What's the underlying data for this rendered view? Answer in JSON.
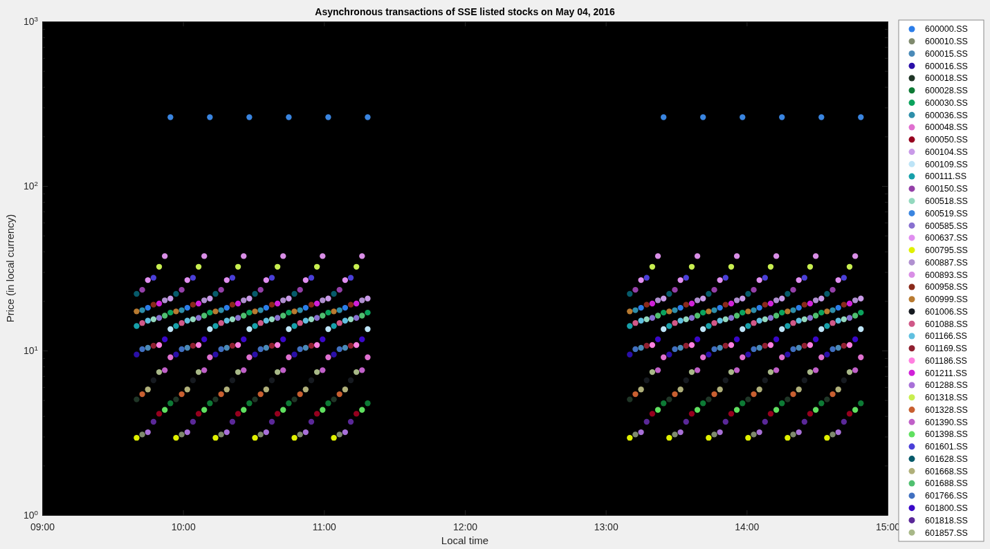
{
  "chart_data": {
    "type": "scatter",
    "title": "Asynchronous transactions of SSE listed stocks on May 04, 2016",
    "xlabel": "Local time",
    "ylabel": "Price (in local currency)",
    "log": "y",
    "grid": false,
    "legend": "right",
    "marker": "circle",
    "xlim": [
      9,
      15
    ],
    "xticks": [
      {
        "value": 9,
        "label": "09:00"
      },
      {
        "value": 10,
        "label": "10:00"
      },
      {
        "value": 11,
        "label": "11:00"
      },
      {
        "value": 12,
        "label": "12:00"
      },
      {
        "value": 13,
        "label": "13:00"
      },
      {
        "value": 14,
        "label": "14:00"
      },
      {
        "value": 15,
        "label": "15:00"
      }
    ],
    "ylim": [
      1,
      1000
    ],
    "yticks": [
      {
        "value": 1,
        "label": "10$^{0}$"
      },
      {
        "value": 2,
        "label": null
      },
      {
        "value": 3,
        "label": null
      },
      {
        "value": 4,
        "label": null
      },
      {
        "value": 5,
        "label": null
      },
      {
        "value": 6,
        "label": null
      },
      {
        "value": 7,
        "label": null
      },
      {
        "value": 8,
        "label": null
      },
      {
        "value": 9,
        "label": null
      },
      {
        "value": 10,
        "label": "10$^{1}$"
      },
      {
        "value": 20,
        "label": null
      },
      {
        "value": 30,
        "label": null
      },
      {
        "value": 40,
        "label": null
      },
      {
        "value": 50,
        "label": null
      },
      {
        "value": 60,
        "label": null
      },
      {
        "value": 70,
        "label": null
      },
      {
        "value": 80,
        "label": null
      },
      {
        "value": 90,
        "label": null
      },
      {
        "value": 100,
        "label": "10$^{2}$"
      },
      {
        "value": 200,
        "label": null
      },
      {
        "value": 300,
        "label": null
      },
      {
        "value": 400,
        "label": null
      },
      {
        "value": 500,
        "label": null
      },
      {
        "value": 600,
        "label": null
      },
      {
        "value": 700,
        "label": null
      },
      {
        "value": 800,
        "label": null
      },
      {
        "value": 900,
        "label": null
      },
      {
        "value": 1000,
        "label": "10$^{3}$"
      }
    ],
    "series": [
      {
        "name": "600000.SS",
        "color": "#2b7de9",
        "x": [
          9.75,
          10.03,
          10.31,
          10.59,
          10.87,
          11.15,
          13.25,
          13.53,
          13.81,
          14.09,
          14.37,
          14.65
        ],
        "values": [
          18.2,
          18.2,
          18.2,
          18.2,
          18.2,
          18.2,
          18.2,
          18.2,
          18.2,
          18.2,
          18.2,
          18.2
        ]
      },
      {
        "name": "600010.SS",
        "color": "#7f8a6e",
        "x": [
          9.71,
          9.99,
          10.27,
          10.55,
          10.83,
          11.11,
          13.21,
          13.49,
          13.77,
          14.05,
          14.33,
          14.61
        ],
        "values": [
          3.09,
          3.09,
          3.09,
          3.09,
          3.09,
          3.09,
          3.09,
          3.09,
          3.09,
          3.09,
          3.09,
          3.09
        ]
      },
      {
        "name": "600015.SS",
        "color": "#4a8ab8",
        "x": [
          9.75,
          10.03,
          10.31,
          10.59,
          10.87,
          11.15,
          13.25,
          13.53,
          13.81,
          14.09,
          14.37,
          14.65
        ],
        "values": [
          10.4,
          10.4,
          10.4,
          10.4,
          10.4,
          10.4,
          10.4,
          10.4,
          10.4,
          10.4,
          10.4,
          10.4
        ]
      },
      {
        "name": "600016.SS",
        "color": "#2a0fa8",
        "x": [
          9.67,
          9.95,
          10.23,
          10.51,
          10.79,
          11.07,
          13.17,
          13.45,
          13.73,
          14.01,
          14.29,
          14.57
        ],
        "values": [
          9.46,
          9.46,
          9.46,
          9.46,
          9.46,
          9.46,
          9.46,
          9.46,
          9.46,
          9.46,
          9.46,
          9.46
        ]
      },
      {
        "name": "600018.SS",
        "color": "#1f3526",
        "x": [
          9.67,
          9.95,
          10.23,
          10.51,
          10.79,
          11.07,
          13.17,
          13.45,
          13.73,
          14.01,
          14.29,
          14.57
        ],
        "values": [
          5.05,
          5.05,
          5.05,
          5.05,
          5.05,
          5.05,
          5.05,
          5.05,
          5.05,
          5.05,
          5.05,
          5.05
        ]
      },
      {
        "name": "600028.SS",
        "color": "#0d7a35",
        "x": [
          9.91,
          10.19,
          10.47,
          10.75,
          11.03,
          11.31,
          13.41,
          13.69,
          13.97,
          14.25,
          14.53,
          14.81
        ],
        "values": [
          4.78,
          4.78,
          4.78,
          4.78,
          4.78,
          4.78,
          4.78,
          4.78,
          4.78,
          4.78,
          4.78,
          4.78
        ]
      },
      {
        "name": "600030.SS",
        "color": "#0ba35d",
        "x": [
          9.91,
          10.19,
          10.47,
          10.75,
          11.03,
          11.31,
          13.41,
          13.69,
          13.97,
          14.25,
          14.53,
          14.81
        ],
        "values": [
          17.0,
          17.0,
          17.0,
          17.0,
          17.0,
          17.0,
          17.0,
          17.0,
          17.0,
          17.0,
          17.0,
          17.0
        ]
      },
      {
        "name": "600036.SS",
        "color": "#2e8faa",
        "x": [
          9.71,
          9.99,
          10.27,
          10.55,
          10.83,
          11.11,
          13.21,
          13.49,
          13.77,
          14.05,
          14.33,
          14.61
        ],
        "values": [
          17.6,
          17.6,
          17.6,
          17.6,
          17.6,
          17.6,
          17.6,
          17.6,
          17.6,
          17.6,
          17.6,
          17.6
        ]
      },
      {
        "name": "600048.SS",
        "color": "#e070d0",
        "x": [
          9.91,
          10.19,
          10.47,
          10.75,
          11.03,
          11.31,
          13.41,
          13.69,
          13.97,
          14.25,
          14.53,
          14.81
        ],
        "values": [
          9.1,
          9.1,
          9.1,
          9.1,
          9.1,
          9.1,
          9.1,
          9.1,
          9.1,
          9.1,
          9.1,
          9.1
        ]
      },
      {
        "name": "600050.SS",
        "color": "#96001e",
        "x": [
          9.83,
          10.11,
          10.39,
          10.67,
          10.95,
          11.23,
          13.33,
          13.61,
          13.89,
          14.17,
          14.45,
          14.73
        ],
        "values": [
          4.13,
          4.13,
          4.13,
          4.13,
          4.13,
          4.13,
          4.13,
          4.13,
          4.13,
          4.13,
          4.13,
          4.13
        ]
      },
      {
        "name": "600104.SS",
        "color": "#c99ae8",
        "x": [
          9.91,
          10.19,
          10.47,
          10.75,
          11.03,
          11.31,
          13.41,
          13.69,
          13.97,
          14.25,
          14.53,
          14.81
        ],
        "values": [
          20.7,
          20.7,
          20.7,
          20.7,
          20.7,
          20.7,
          20.7,
          20.7,
          20.7,
          20.7,
          20.7,
          20.7
        ]
      },
      {
        "name": "600109.SS",
        "color": "#bde4f7",
        "x": [
          9.91,
          10.19,
          10.47,
          10.75,
          11.03,
          11.31,
          13.41,
          13.69,
          13.97,
          14.25,
          14.53,
          14.81
        ],
        "values": [
          13.5,
          13.5,
          13.5,
          13.5,
          13.5,
          13.5,
          13.5,
          13.5,
          13.5,
          13.5,
          13.5,
          13.5
        ]
      },
      {
        "name": "600111.SS",
        "color": "#17a0aa",
        "x": [
          9.67,
          9.95,
          10.23,
          10.51,
          10.79,
          11.07,
          13.17,
          13.45,
          13.73,
          14.01,
          14.29,
          14.57
        ],
        "values": [
          14.1,
          14.1,
          14.1,
          14.1,
          14.1,
          14.1,
          14.1,
          14.1,
          14.1,
          14.1,
          14.1,
          14.1
        ]
      },
      {
        "name": "600150.SS",
        "color": "#9440a8",
        "x": [
          9.71,
          9.99,
          10.27,
          10.55,
          10.83,
          11.11,
          13.21,
          13.49,
          13.77,
          14.05,
          14.33,
          14.61
        ],
        "values": [
          23.4,
          23.4,
          23.4,
          23.4,
          23.4,
          23.4,
          23.4,
          23.4,
          23.4,
          23.4,
          23.4,
          23.4
        ]
      },
      {
        "name": "600518.SS",
        "color": "#93d8be",
        "x": [
          9.79,
          10.07,
          10.35,
          10.63,
          10.91,
          11.19,
          13.29,
          13.57,
          13.85,
          14.13,
          14.41,
          14.69
        ],
        "values": [
          15.5,
          15.5,
          15.5,
          15.5,
          15.5,
          15.5,
          15.5,
          15.5,
          15.5,
          15.5,
          15.5,
          15.5
        ]
      },
      {
        "name": "600519.SS",
        "color": "#3a85e0",
        "x": [
          9.91,
          10.19,
          10.47,
          10.75,
          11.03,
          11.31,
          13.41,
          13.69,
          13.97,
          14.25,
          14.53,
          14.81
        ],
        "values": [
          262,
          262,
          262,
          262,
          262,
          262,
          262,
          262,
          262,
          262,
          262,
          262
        ]
      },
      {
        "name": "600585.SS",
        "color": "#8870d0",
        "x": [
          9.83,
          10.11,
          10.39,
          10.67,
          10.95,
          11.23,
          13.33,
          13.61,
          13.89,
          14.17,
          14.45,
          14.73
        ],
        "values": [
          15.8,
          15.8,
          15.8,
          15.8,
          15.8,
          15.8,
          15.8,
          15.8,
          15.8,
          15.8,
          15.8,
          15.8
        ]
      },
      {
        "name": "600637.SS",
        "color": "#e08ef0",
        "x": [
          9.75,
          10.03,
          10.31,
          10.59,
          10.87,
          11.15,
          13.25,
          13.53,
          13.81,
          14.09,
          14.37,
          14.65
        ],
        "values": [
          26.8,
          26.8,
          26.8,
          26.8,
          26.8,
          26.8,
          26.8,
          26.8,
          26.8,
          26.8,
          26.8,
          26.8
        ]
      },
      {
        "name": "600795.SS",
        "color": "#e0f000",
        "x": [
          9.67,
          9.95,
          10.23,
          10.51,
          10.79,
          11.07,
          13.17,
          13.45,
          13.73,
          14.01,
          14.29,
          14.57
        ],
        "values": [
          2.95,
          2.95,
          2.95,
          2.95,
          2.95,
          2.95,
          2.95,
          2.95,
          2.95,
          2.95,
          2.95,
          2.95
        ]
      },
      {
        "name": "600887.SS",
        "color": "#b090d0",
        "x": [
          9.87,
          10.15,
          10.43,
          10.71,
          10.99,
          11.27,
          13.37,
          13.65,
          13.93,
          14.21,
          14.49,
          14.77
        ],
        "values": [
          20.2,
          20.2,
          20.2,
          20.2,
          20.2,
          20.2,
          20.2,
          20.2,
          20.2,
          20.2,
          20.2,
          20.2
        ]
      },
      {
        "name": "600893.SS",
        "color": "#d98ee6",
        "x": [
          9.87,
          10.15,
          10.43,
          10.71,
          10.99,
          11.27,
          13.37,
          13.65,
          13.93,
          14.21,
          14.49,
          14.77
        ],
        "values": [
          37.5,
          37.5,
          37.5,
          37.5,
          37.5,
          37.5,
          37.5,
          37.5,
          37.5,
          37.5,
          37.5,
          37.5
        ]
      },
      {
        "name": "600958.SS",
        "color": "#8a2a1a",
        "x": [
          9.79,
          10.07,
          10.35,
          10.63,
          10.91,
          11.19,
          13.29,
          13.57,
          13.85,
          14.13,
          14.41,
          14.69
        ],
        "values": [
          19.0,
          19.0,
          19.0,
          19.0,
          19.0,
          19.0,
          19.0,
          19.0,
          19.0,
          19.0,
          19.0,
          19.0
        ]
      },
      {
        "name": "600999.SS",
        "color": "#b87a30",
        "x": [
          9.67,
          9.95,
          10.23,
          10.51,
          10.79,
          11.07,
          13.17,
          13.45,
          13.73,
          14.01,
          14.29,
          14.57
        ],
        "values": [
          17.3,
          17.3,
          17.3,
          17.3,
          17.3,
          17.3,
          17.3,
          17.3,
          17.3,
          17.3,
          17.3,
          17.3
        ]
      },
      {
        "name": "601006.SS",
        "color": "#161a20",
        "x": [
          9.79,
          10.07,
          10.35,
          10.63,
          10.91,
          11.19,
          13.29,
          13.57,
          13.85,
          14.13,
          14.41,
          14.69
        ],
        "values": [
          6.6,
          6.6,
          6.6,
          6.6,
          6.6,
          6.6,
          6.6,
          6.6,
          6.6,
          6.6,
          6.6,
          6.6
        ]
      },
      {
        "name": "601088.SS",
        "color": "#d05888",
        "x": [
          9.71,
          9.99,
          10.27,
          10.55,
          10.83,
          11.11,
          13.21,
          13.49,
          13.77,
          14.05,
          14.33,
          14.61
        ],
        "values": [
          14.7,
          14.7,
          14.7,
          14.7,
          14.7,
          14.7,
          14.7,
          14.7,
          14.7,
          14.7,
          14.7,
          14.7
        ]
      },
      {
        "name": "601166.SS",
        "color": "#60c0e0",
        "x": [
          9.75,
          10.03,
          10.31,
          10.59,
          10.87,
          11.15,
          13.25,
          13.53,
          13.81,
          14.09,
          14.37,
          14.65
        ],
        "values": [
          15.2,
          15.2,
          15.2,
          15.2,
          15.2,
          15.2,
          15.2,
          15.2,
          15.2,
          15.2,
          15.2,
          15.2
        ]
      },
      {
        "name": "601169.SS",
        "color": "#902030",
        "x": [
          9.79,
          10.07,
          10.35,
          10.63,
          10.91,
          11.19,
          13.29,
          13.57,
          13.85,
          14.13,
          14.41,
          14.69
        ],
        "values": [
          10.7,
          10.7,
          10.7,
          10.7,
          10.7,
          10.7,
          10.7,
          10.7,
          10.7,
          10.7,
          10.7,
          10.7
        ]
      },
      {
        "name": "601186.SS",
        "color": "#ff80e0",
        "x": [
          9.83,
          10.11,
          10.39,
          10.67,
          10.95,
          11.23,
          13.33,
          13.61,
          13.89,
          14.17,
          14.45,
          14.73
        ],
        "values": [
          10.8,
          10.8,
          10.8,
          10.8,
          10.8,
          10.8,
          10.8,
          10.8,
          10.8,
          10.8,
          10.8,
          10.8
        ]
      },
      {
        "name": "601211.SS",
        "color": "#d020d8",
        "x": [
          9.83,
          10.11,
          10.39,
          10.67,
          10.95,
          11.23,
          13.33,
          13.61,
          13.89,
          14.17,
          14.45,
          14.73
        ],
        "values": [
          19.3,
          19.3,
          19.3,
          19.3,
          19.3,
          19.3,
          19.3,
          19.3,
          19.3,
          19.3,
          19.3,
          19.3
        ]
      },
      {
        "name": "601288.SS",
        "color": "#a870d8",
        "x": [
          9.75,
          10.03,
          10.31,
          10.59,
          10.87,
          11.15,
          13.25,
          13.53,
          13.81,
          14.09,
          14.37,
          14.65
        ],
        "values": [
          3.19,
          3.19,
          3.19,
          3.19,
          3.19,
          3.19,
          3.19,
          3.19,
          3.19,
          3.19,
          3.19,
          3.19
        ]
      },
      {
        "name": "601318.SS",
        "color": "#c8ee50",
        "x": [
          9.83,
          10.11,
          10.39,
          10.67,
          10.95,
          11.23,
          13.33,
          13.61,
          13.89,
          14.17,
          14.45,
          14.73
        ],
        "values": [
          32.3,
          32.3,
          32.3,
          32.3,
          32.3,
          32.3,
          32.3,
          32.3,
          32.3,
          32.3,
          32.3,
          32.3
        ]
      },
      {
        "name": "601328.SS",
        "color": "#c85f30",
        "x": [
          9.71,
          9.99,
          10.27,
          10.55,
          10.83,
          11.11,
          13.21,
          13.49,
          13.77,
          14.05,
          14.33,
          14.61
        ],
        "values": [
          5.43,
          5.43,
          5.43,
          5.43,
          5.43,
          5.43,
          5.43,
          5.43,
          5.43,
          5.43,
          5.43,
          5.43
        ]
      },
      {
        "name": "601390.SS",
        "color": "#c060c8",
        "x": [
          9.87,
          10.15,
          10.43,
          10.71,
          10.99,
          11.27,
          13.37,
          13.65,
          13.93,
          14.21,
          14.49,
          14.77
        ],
        "values": [
          7.6,
          7.6,
          7.6,
          7.6,
          7.6,
          7.6,
          7.6,
          7.6,
          7.6,
          7.6,
          7.6,
          7.6
        ]
      },
      {
        "name": "601398.SS",
        "color": "#60e060",
        "x": [
          9.87,
          10.15,
          10.43,
          10.71,
          10.99,
          11.27,
          13.37,
          13.65,
          13.93,
          14.21,
          14.49,
          14.77
        ],
        "values": [
          4.36,
          4.36,
          4.36,
          4.36,
          4.36,
          4.36,
          4.36,
          4.36,
          4.36,
          4.36,
          4.36,
          4.36
        ]
      },
      {
        "name": "601601.SS",
        "color": "#4a3fd8",
        "x": [
          9.79,
          10.07,
          10.35,
          10.63,
          10.91,
          11.19,
          13.29,
          13.57,
          13.85,
          14.13,
          14.41,
          14.69
        ],
        "values": [
          27.7,
          27.7,
          27.7,
          27.7,
          27.7,
          27.7,
          27.7,
          27.7,
          27.7,
          27.7,
          27.7,
          27.7
        ]
      },
      {
        "name": "601628.SS",
        "color": "#065a6a",
        "x": [
          9.67,
          9.95,
          10.23,
          10.51,
          10.79,
          11.07,
          13.17,
          13.45,
          13.73,
          14.01,
          14.29,
          14.57
        ],
        "values": [
          22.1,
          22.1,
          22.1,
          22.1,
          22.1,
          22.1,
          22.1,
          22.1,
          22.1,
          22.1,
          22.1,
          22.1
        ]
      },
      {
        "name": "601668.SS",
        "color": "#b0b07a",
        "x": [
          9.75,
          10.03,
          10.31,
          10.59,
          10.87,
          11.15,
          13.25,
          13.53,
          13.81,
          14.09,
          14.37,
          14.65
        ],
        "values": [
          5.8,
          5.8,
          5.8,
          5.8,
          5.8,
          5.8,
          5.8,
          5.8,
          5.8,
          5.8,
          5.8,
          5.8
        ]
      },
      {
        "name": "601688.SS",
        "color": "#50c070",
        "x": [
          9.87,
          10.15,
          10.43,
          10.71,
          10.99,
          11.27,
          13.37,
          13.65,
          13.93,
          14.21,
          14.49,
          14.77
        ],
        "values": [
          16.3,
          16.3,
          16.3,
          16.3,
          16.3,
          16.3,
          16.3,
          16.3,
          16.3,
          16.3,
          16.3,
          16.3
        ]
      },
      {
        "name": "601766.SS",
        "color": "#4070c0",
        "x": [
          9.71,
          9.99,
          10.27,
          10.55,
          10.83,
          11.11,
          13.21,
          13.49,
          13.77,
          14.05,
          14.33,
          14.61
        ],
        "values": [
          10.2,
          10.2,
          10.2,
          10.2,
          10.2,
          10.2,
          10.2,
          10.2,
          10.2,
          10.2,
          10.2,
          10.2
        ]
      },
      {
        "name": "601800.SS",
        "color": "#3a08c8",
        "x": [
          9.87,
          10.15,
          10.43,
          10.71,
          10.99,
          11.27,
          13.37,
          13.65,
          13.93,
          14.21,
          14.49,
          14.77
        ],
        "values": [
          11.7,
          11.7,
          11.7,
          11.7,
          11.7,
          11.7,
          11.7,
          11.7,
          11.7,
          11.7,
          11.7,
          11.7
        ]
      },
      {
        "name": "601818.SS",
        "color": "#5a2898",
        "x": [
          9.79,
          10.07,
          10.35,
          10.63,
          10.91,
          11.19,
          13.29,
          13.57,
          13.85,
          14.13,
          14.41,
          14.69
        ],
        "values": [
          3.69,
          3.69,
          3.69,
          3.69,
          3.69,
          3.69,
          3.69,
          3.69,
          3.69,
          3.69,
          3.69,
          3.69
        ]
      },
      {
        "name": "601857.SS",
        "color": "#a8b888",
        "x": [
          9.83,
          10.11,
          10.39,
          10.67,
          10.95,
          11.23,
          13.33,
          13.61,
          13.89,
          14.17,
          14.45,
          14.73
        ],
        "values": [
          7.4,
          7.4,
          7.4,
          7.4,
          7.4,
          7.4,
          7.4,
          7.4,
          7.4,
          7.4,
          7.4,
          7.4
        ]
      }
    ]
  }
}
